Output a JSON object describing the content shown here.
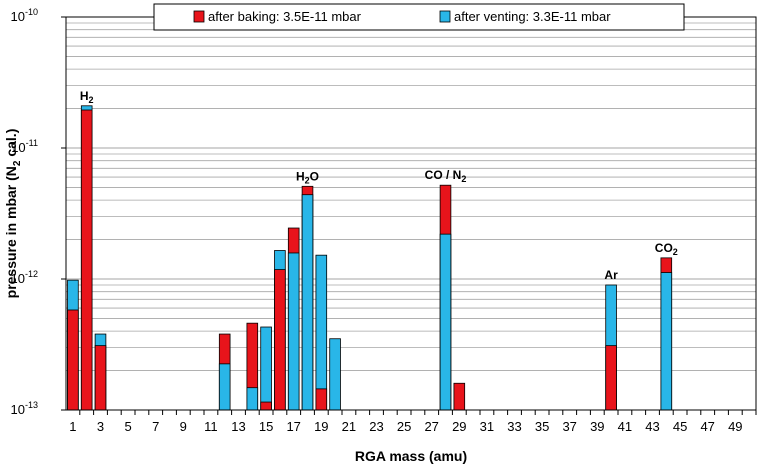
{
  "chart_data": {
    "type": "bar",
    "xlabel": "RGA mass (amu)",
    "ylabel": "pressure in mbar (N2 cal.)",
    "ylabel_parts": {
      "main": "pressure in mbar (N",
      "sub": "2",
      "tail": " cal.)"
    },
    "yscale": "log",
    "ylim": [
      1e-13,
      1e-10
    ],
    "xlim": [
      1,
      50
    ],
    "x_tick_labels": [
      "1",
      "3",
      "5",
      "7",
      "9",
      "11",
      "13",
      "15",
      "17",
      "19",
      "21",
      "23",
      "25",
      "27",
      "29",
      "31",
      "33",
      "35",
      "37",
      "39",
      "41",
      "43",
      "45",
      "47",
      "49"
    ],
    "y_tick_labels": [
      {
        "value": 1e-10,
        "base": "10",
        "exp": "-10"
      },
      {
        "value": 1e-11,
        "base": "10",
        "exp": "-11"
      },
      {
        "value": 1e-12,
        "base": "10",
        "exp": "-12"
      },
      {
        "value": 1e-13,
        "base": "10",
        "exp": "-13"
      }
    ],
    "grid": true,
    "legend_position": "top",
    "series": [
      {
        "name": "after baking: 3.5E-11 mbar",
        "color": "#e8141b",
        "points": [
          {
            "x": 1,
            "y": 5.8e-13
          },
          {
            "x": 2,
            "y": 1.95e-11
          },
          {
            "x": 3,
            "y": 3.1e-13
          },
          {
            "x": 12,
            "y": 3.8e-13
          },
          {
            "x": 14,
            "y": 4.6e-13
          },
          {
            "x": 15,
            "y": 1.15e-13
          },
          {
            "x": 16,
            "y": 1.18e-12
          },
          {
            "x": 17,
            "y": 2.45e-12
          },
          {
            "x": 18,
            "y": 5.1e-12
          },
          {
            "x": 19,
            "y": 1.45e-13
          },
          {
            "x": 28,
            "y": 5.2e-12
          },
          {
            "x": 29,
            "y": 1.6e-13
          },
          {
            "x": 40,
            "y": 3.1e-13
          },
          {
            "x": 44,
            "y": 1.45e-12
          }
        ]
      },
      {
        "name": "after venting: 3.3E-11 mbar",
        "color": "#29b6e8",
        "points": [
          {
            "x": 1,
            "y": 9.8e-13
          },
          {
            "x": 2,
            "y": 2.1e-11
          },
          {
            "x": 3,
            "y": 3.8e-13
          },
          {
            "x": 12,
            "y": 2.25e-13
          },
          {
            "x": 14,
            "y": 1.48e-13
          },
          {
            "x": 15,
            "y": 4.3e-13
          },
          {
            "x": 16,
            "y": 1.65e-12
          },
          {
            "x": 17,
            "y": 1.58e-12
          },
          {
            "x": 18,
            "y": 4.4e-12
          },
          {
            "x": 19,
            "y": 1.52e-12
          },
          {
            "x": 20,
            "y": 3.5e-13
          },
          {
            "x": 28,
            "y": 2.2e-12
          },
          {
            "x": 40,
            "y": 9e-13
          },
          {
            "x": 44,
            "y": 1.12e-12
          }
        ]
      }
    ],
    "annotations": [
      {
        "x": 2,
        "y": 2.1e-11,
        "main": "H",
        "sub": "2",
        "tail": ""
      },
      {
        "x": 18,
        "y": 5.1e-12,
        "main": "H",
        "sub": "2",
        "tail": "O"
      },
      {
        "x": 28,
        "y": 5.2e-12,
        "main": "CO / N",
        "sub": "2",
        "tail": ""
      },
      {
        "x": 40,
        "y": 9e-13,
        "main": "Ar",
        "sub": "",
        "tail": ""
      },
      {
        "x": 44,
        "y": 1.45e-12,
        "main": "CO",
        "sub": "2",
        "tail": ""
      }
    ]
  }
}
